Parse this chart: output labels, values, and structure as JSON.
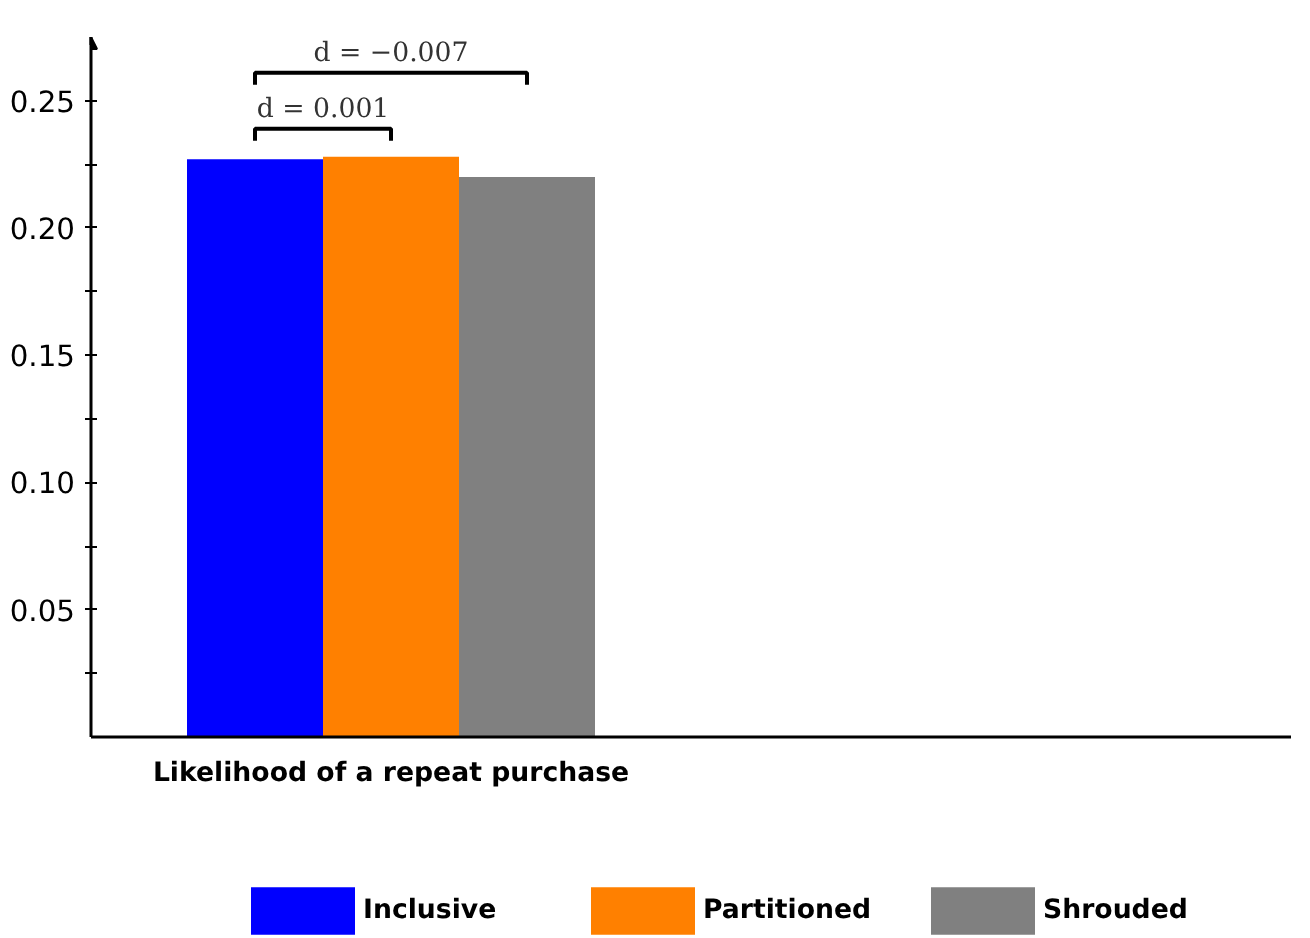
{
  "chart_data": {
    "type": "bar",
    "categories": [
      "Likelihood of a repeat purchase"
    ],
    "series": [
      {
        "name": "Inclusive",
        "color": "#0000ff",
        "values": [
          0.227
        ]
      },
      {
        "name": "Partitioned",
        "color": "#ff8000",
        "values": [
          0.228
        ]
      },
      {
        "name": "Shrouded",
        "color": "#808080",
        "values": [
          0.22
        ]
      }
    ],
    "ylim": [
      0,
      0.275
    ],
    "yticks": [
      {
        "value": 0.025,
        "label": null
      },
      0.05,
      {
        "value": 0.075,
        "label": null
      },
      {
        "value": 0.1,
        "label": "0.10"
      },
      {
        "value": 0.125,
        "label": null
      },
      0.15,
      {
        "value": 0.175,
        "label": null
      },
      {
        "value": 0.2,
        "label": "0.20"
      },
      {
        "value": 0.225,
        "label": null
      },
      0.25
    ],
    "annotations": [
      "d = 0.001",
      "d = −0.007"
    ],
    "legend": "bottom",
    "grid": false
  }
}
